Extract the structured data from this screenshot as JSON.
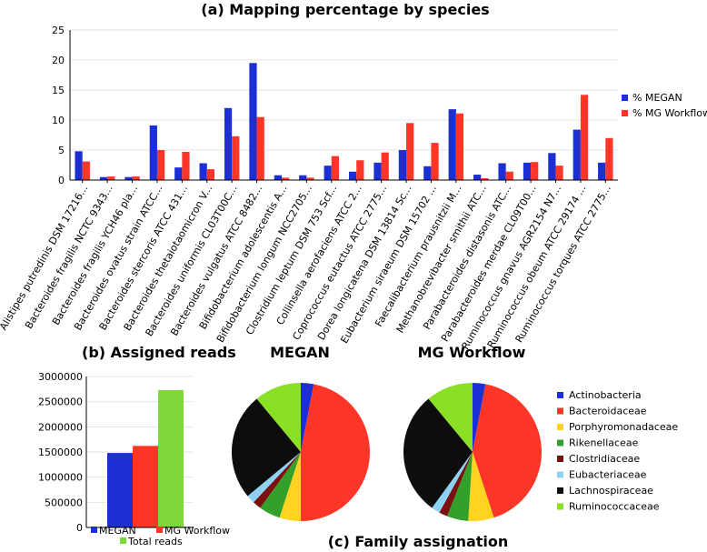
{
  "chart_data": [
    {
      "panel": "(a)",
      "type": "bar",
      "title": "Mapping percentage by species",
      "xlabel": "",
      "ylabel": "",
      "ylim": [
        0,
        25
      ],
      "yticks": [
        "0",
        "5",
        "10",
        "15",
        "20",
        "25"
      ],
      "legend": "right",
      "categories": [
        "Alistipes putredinis DSM 17216...",
        "Bacteroides fragilis NCTC 9343...",
        "Bacteroides fragilis YCH46 pla...",
        "Bacteroides ovatus strain ATCC...",
        "Bacteroides stercoris ATCC 431...",
        "Bacteroides thetaiotaomicron V...",
        "Bacteroides uniformis CL03T00C...",
        "Bacteroides vulgatus ATCC 8482...",
        "Bifidobacterium adolescentis A...",
        "Bifidobacterium longum NCC2705...",
        "Clostridium leptum DSM 753 Scf...",
        "Collinsella aerofaciens ATCC 2...",
        "Coprococcus eutactus ATCC 2775...",
        "Dorea longicatena DSM 13814 Sc...",
        "Eubacterium siraeum DSM 15702 ...",
        "Faecalibacterium prausnitzii M...",
        "Methanobrevibacter smithii ATC...",
        "Parabacteroides distasonis ATC...",
        "Parabacteroides merdae CL09T00...",
        "Ruminococcus gnavus AGR2154 N7...",
        "Ruminococcus obeum ATCC 29174 ...",
        "Ruminococcus torques ATCC 2775..."
      ],
      "series": [
        {
          "name": "% MEGAN",
          "color": "#1c2fd4",
          "values": [
            4.8,
            0.5,
            0.5,
            9.1,
            2.1,
            2.8,
            12.0,
            19.5,
            0.8,
            0.8,
            2.4,
            1.4,
            2.9,
            5.0,
            2.3,
            11.8,
            0.9,
            2.8,
            2.9,
            4.5,
            8.4,
            2.9
          ]
        },
        {
          "name": "% MG Workflow",
          "color": "#ff3527",
          "values": [
            3.1,
            0.6,
            0.6,
            5.0,
            4.7,
            1.8,
            7.3,
            10.5,
            0.4,
            0.4,
            4.0,
            3.3,
            4.6,
            9.5,
            6.2,
            11.1,
            0.3,
            1.4,
            3.0,
            2.4,
            14.2,
            7.0
          ]
        }
      ]
    },
    {
      "panel": "(b)",
      "type": "bar",
      "title": "Assigned reads",
      "xlabel": "",
      "ylabel": "",
      "ylim": [
        0,
        3000000
      ],
      "yticks": [
        "0",
        "500000",
        "1000000",
        "1500000",
        "2000000",
        "2500000",
        "3000000"
      ],
      "legend": "bottom",
      "categories": [
        "MEGAN",
        "MG Workflow",
        "Total reads"
      ],
      "values": [
        1480000,
        1620000,
        2730000
      ],
      "colors": [
        "#1c2fd4",
        "#ff3527",
        "#7ed83c"
      ]
    },
    {
      "panel": "(c)",
      "type": "pie",
      "title": "Family assignation",
      "legend": "right",
      "categories": [
        "Actinobacteria",
        "Bacteroidaceae",
        "Porphyromonadaceae",
        "Rikenellaceae",
        "Clostridiaceae",
        "Eubacteriaceae",
        "Lachnospiraceae",
        "Ruminococcaceae"
      ],
      "colors": [
        "#1c2fd4",
        "#ff3527",
        "#ffd320",
        "#33a02c",
        "#7b1010",
        "#8fd3f4",
        "#0d0d0d",
        "#89e024"
      ],
      "series": [
        {
          "name": "MEGAN",
          "values": [
            3,
            47,
            5,
            5,
            2,
            2,
            25,
            11
          ]
        },
        {
          "name": "MG Workflow",
          "values": [
            3,
            42,
            6,
            5,
            2,
            2,
            29,
            11
          ]
        }
      ]
    }
  ]
}
